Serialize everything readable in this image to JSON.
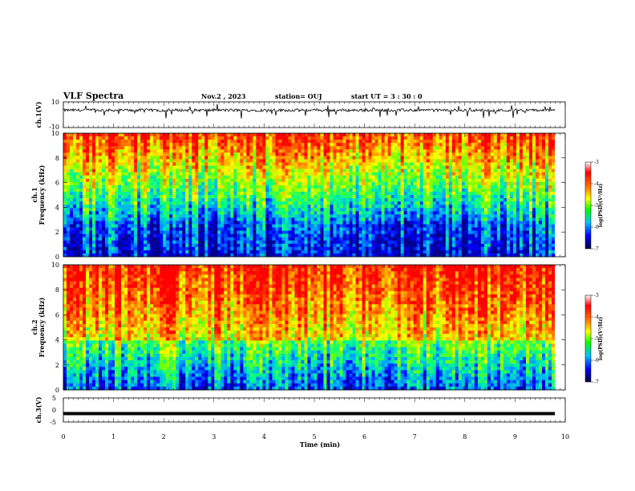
{
  "header": {
    "title": "VLF Spectra",
    "date": "Nov.2  , 2023",
    "station": "station= OUJ",
    "start": "start  UT =   3  : 30 : 0"
  },
  "chart_data": [
    {
      "type": "line",
      "id": "ch1-waveform",
      "ylabel": "ch.1(V)",
      "ylim": [
        -10,
        10
      ],
      "yticks": [
        "10",
        "-10"
      ],
      "description_series_baseline": 3.5
    },
    {
      "type": "heatmap",
      "id": "ch1-spectrogram",
      "ylabel_line1": "ch.1",
      "ylabel_line2": "Frequency (kHz)",
      "ylim": [
        0,
        10
      ],
      "yticks": [
        "0",
        "2",
        "4",
        "6",
        "8",
        "10"
      ],
      "colorbar": {
        "label": "log(PSD)(V²/Hz)",
        "range": [
          -7,
          -3
        ],
        "ticks": [
          "-3",
          "-4",
          "-5",
          "-6",
          "-7"
        ]
      }
    },
    {
      "type": "heatmap",
      "id": "ch2-spectrogram",
      "ylabel_line1": "ch.2",
      "ylabel_line2": "Frequency (kHz)",
      "ylim": [
        0,
        10
      ],
      "yticks": [
        "0",
        "2",
        "4",
        "6",
        "8",
        "10"
      ],
      "colorbar": {
        "label": "log(PSD)(V²/Hz)",
        "range": [
          -7,
          -3
        ],
        "ticks": [
          "-3",
          "-4",
          "-5",
          "-6",
          "-7"
        ]
      }
    },
    {
      "type": "line",
      "id": "ch3-waveform",
      "ylabel": "ch.3(V)",
      "ylim": [
        -5,
        5
      ],
      "yticks": [
        "5",
        "0",
        "-5"
      ],
      "values_constant": -1.5
    }
  ],
  "xaxis": {
    "label": "Time (min)",
    "range": [
      0,
      10
    ],
    "ticks": [
      "0",
      "1",
      "2",
      "3",
      "4",
      "5",
      "6",
      "7",
      "8",
      "9",
      "10"
    ]
  },
  "colors": {
    "scale": [
      "#000080",
      "#0000ff",
      "#00b0ff",
      "#00ff80",
      "#80ff00",
      "#ffff00",
      "#ff8000",
      "#ff0000"
    ]
  }
}
